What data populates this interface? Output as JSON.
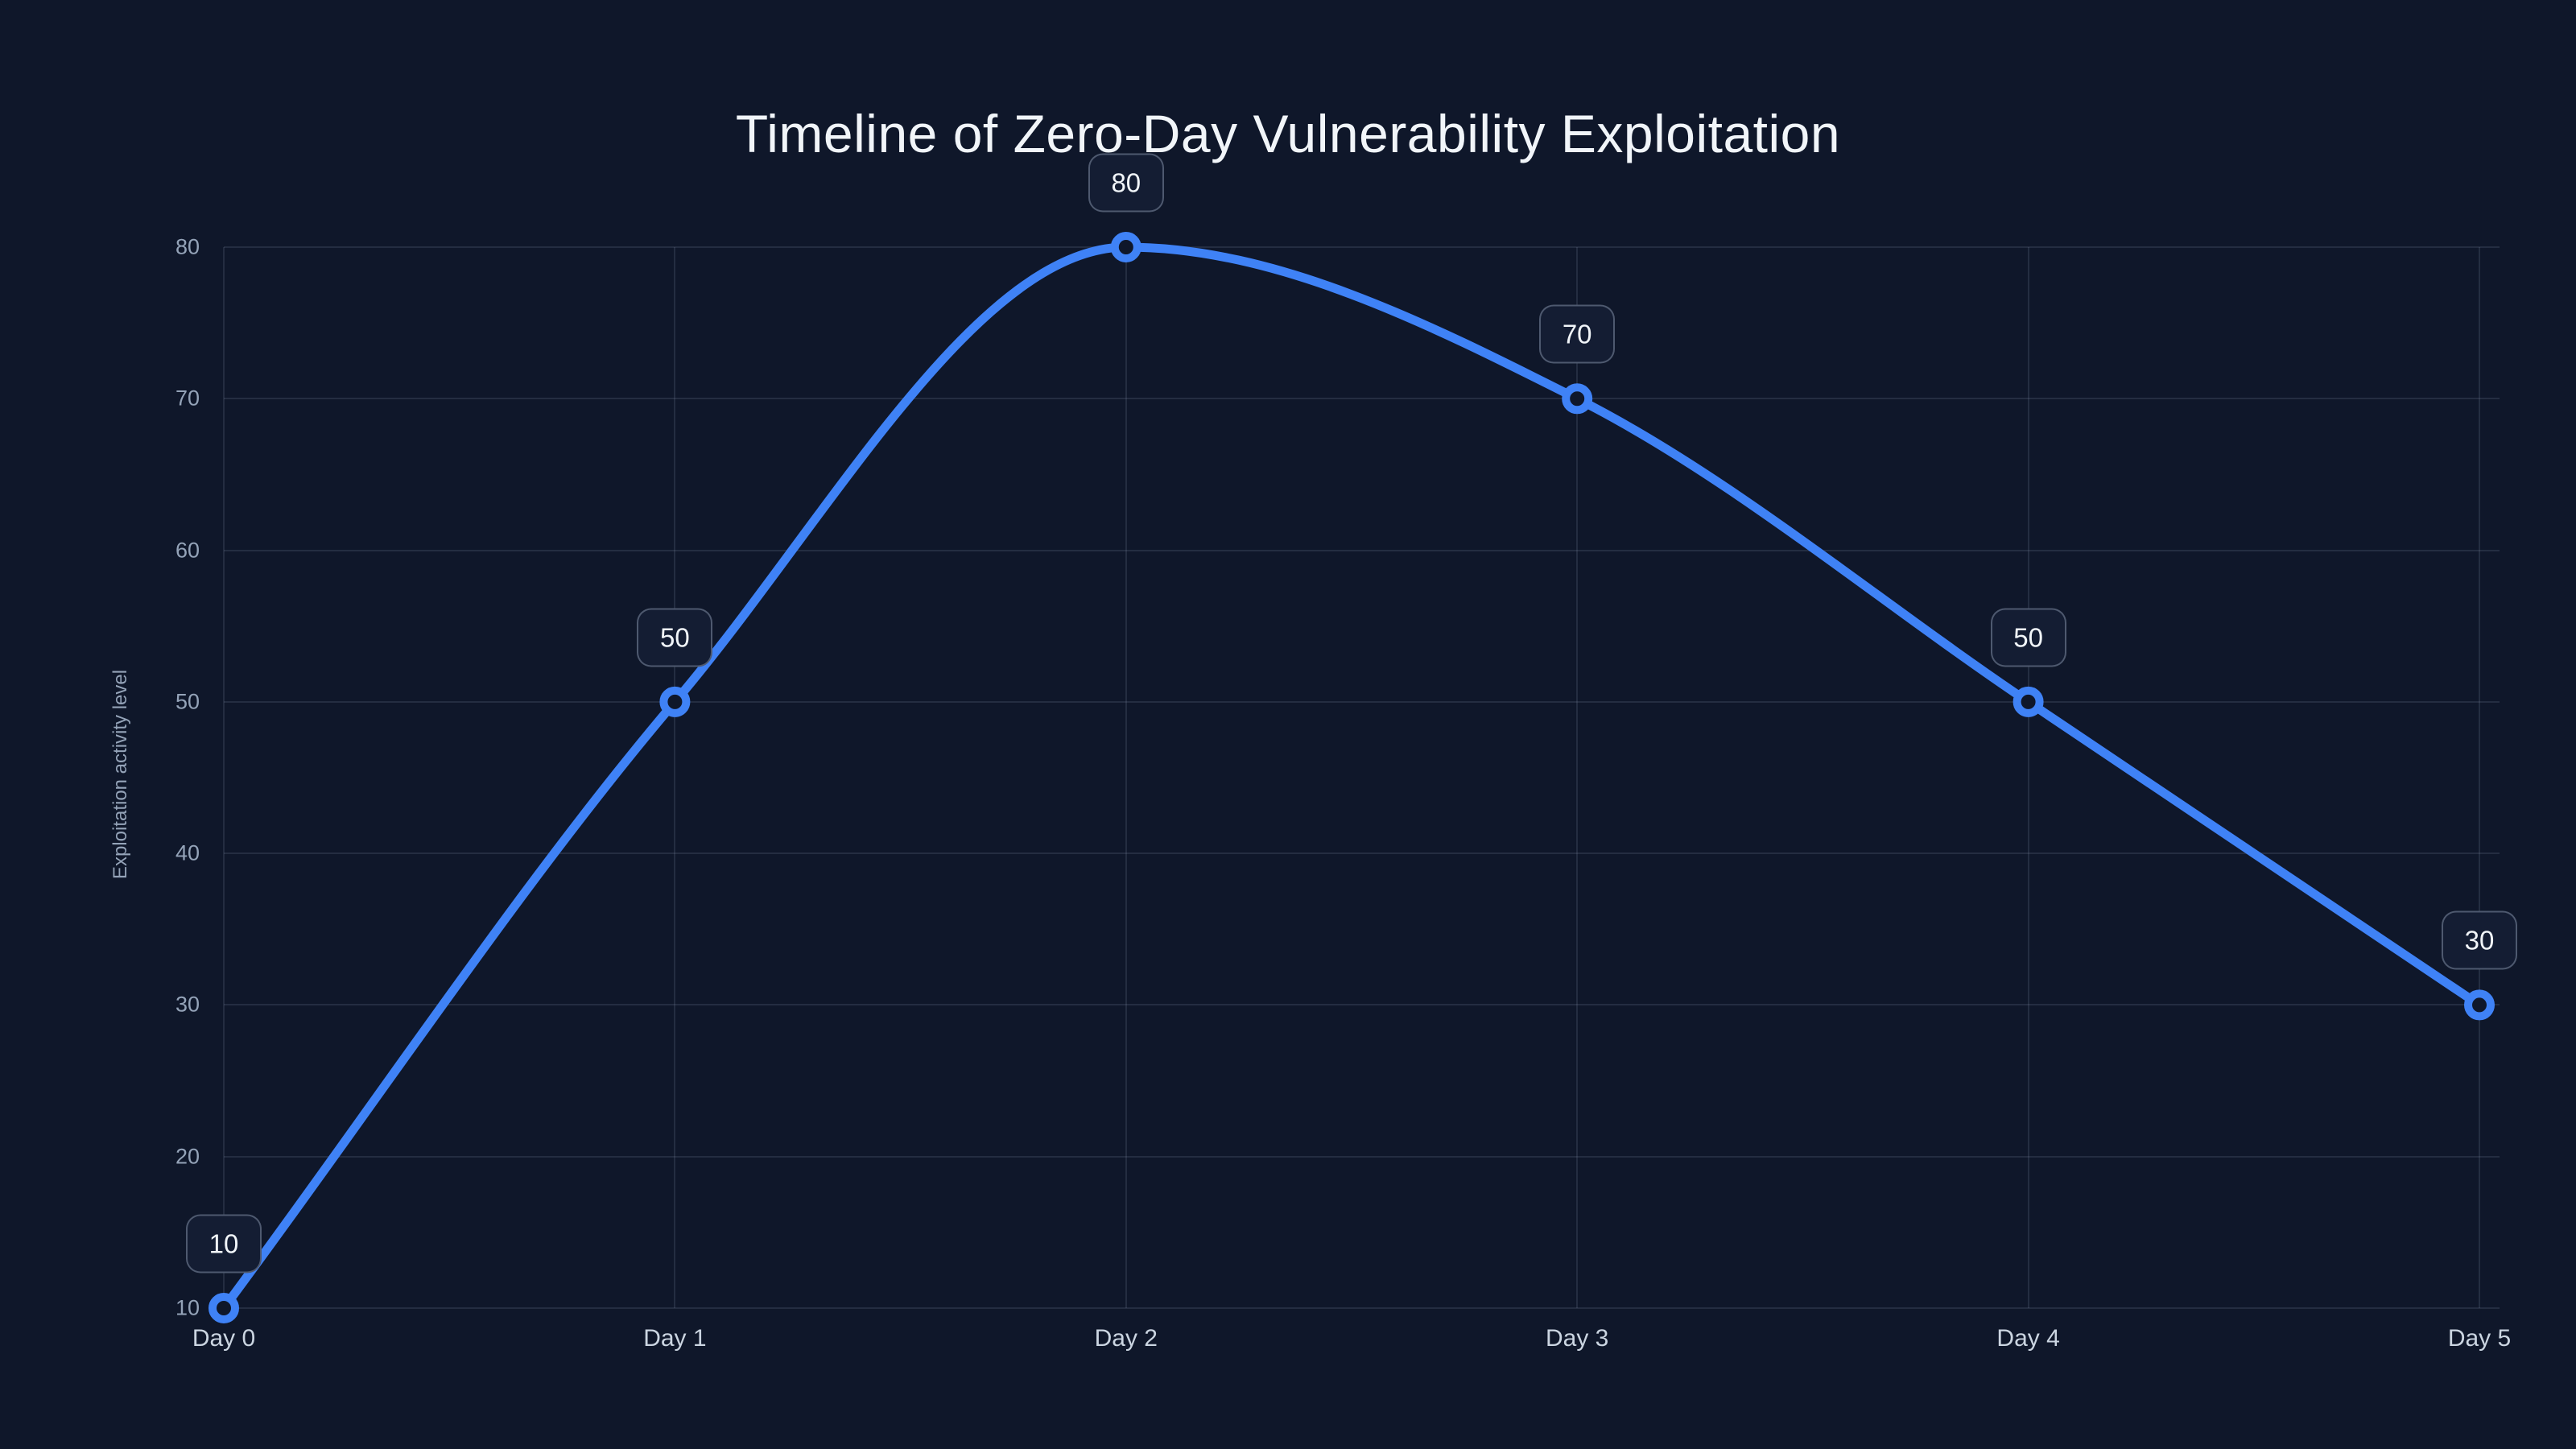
{
  "colors": {
    "background": "#0f172a",
    "accent": "#3f82f6",
    "grid": "rgba(148,163,184,0.16)",
    "y_tick_text": "#94a3b8",
    "x_tick_text": "#cbd5e1",
    "title_text": "#f1f5f9",
    "badge_bg": "#141d33",
    "badge_border": "rgba(148,163,184,0.45)",
    "badge_text": "#f1f5f9",
    "marker_fill": "#0f172a"
  },
  "chart_data": {
    "type": "line",
    "title": "Timeline of Zero-Day Vulnerability Exploitation",
    "categories": [
      "Day 0",
      "Day 1",
      "Day 2",
      "Day 3",
      "Day 4",
      "Day 5"
    ],
    "values": [
      10,
      50,
      80,
      70,
      50,
      30
    ],
    "point_labels": [
      "10",
      "50",
      "80",
      "70",
      "50",
      "30"
    ],
    "xlabel": "",
    "ylabel": "Exploitation activity level",
    "y_ticks": [
      10,
      20,
      30,
      40,
      50,
      60,
      70,
      80
    ],
    "ylim": [
      10,
      80
    ],
    "grid": true,
    "legend": false,
    "smooth": true,
    "marker": "open-circle"
  }
}
